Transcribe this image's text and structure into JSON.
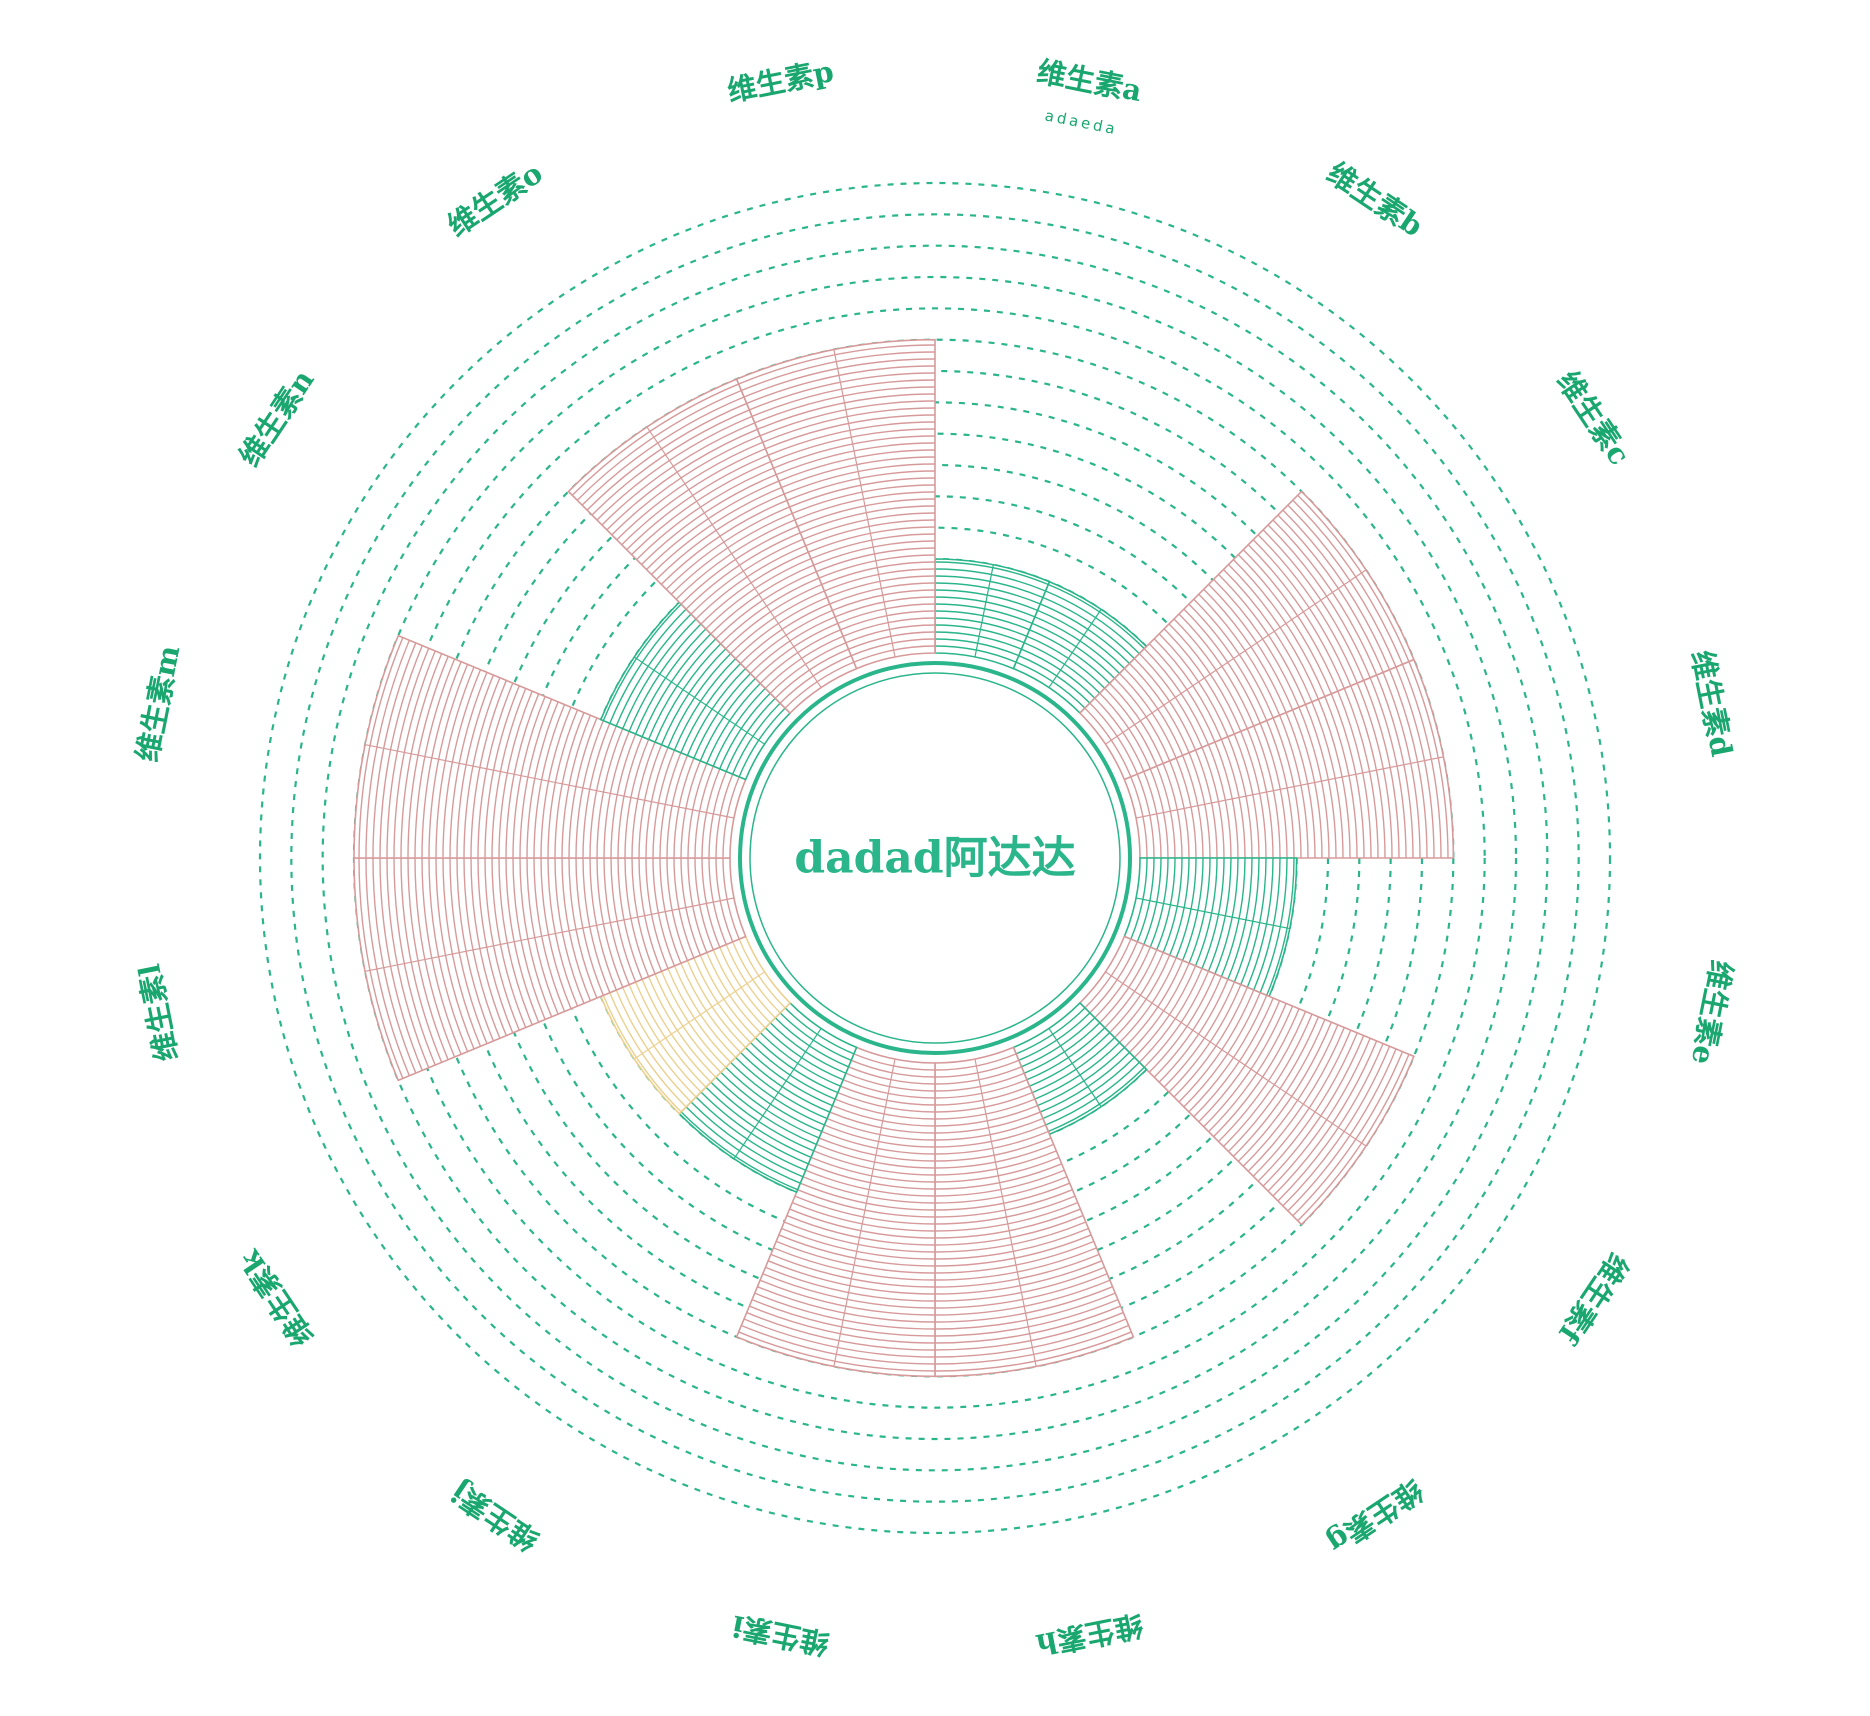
{
  "chart_data": {
    "type": "polar-bar",
    "center_title": "dadad阿达达",
    "categories": [
      "维生素a",
      "维生素b",
      "维生素c",
      "维生素d",
      "维生素e",
      "维生素f",
      "维生素g",
      "维生素h",
      "维生素i",
      "维生素j",
      "维生素k",
      "维生素l",
      "维生素m",
      "维生素n",
      "维生素o",
      "维生素p"
    ],
    "sublabels": {
      "维生素a": "adaeda"
    },
    "values": [
      3,
      3,
      10,
      10,
      5,
      10,
      3,
      10,
      10,
      5,
      5,
      12,
      12,
      5,
      10,
      10
    ],
    "value_max": 15,
    "value_levels": 15,
    "bar_colors": [
      "#2bb58a",
      "#2bb58a",
      "#d79a9b",
      "#d79a9b",
      "#2bb58a",
      "#d79a9b",
      "#2bb58a",
      "#d79a9b",
      "#d79a9b",
      "#2bb58a",
      "#ecd08f",
      "#d79a9b",
      "#d79a9b",
      "#2bb58a",
      "#d79a9b",
      "#d79a9b"
    ],
    "grid": "dashed concentric circles",
    "legend": "none"
  },
  "colors": {
    "accent": "#2bb58a",
    "pink": "#d79a9b",
    "yellow": "#ecd08f",
    "label": "#1aa76f"
  }
}
